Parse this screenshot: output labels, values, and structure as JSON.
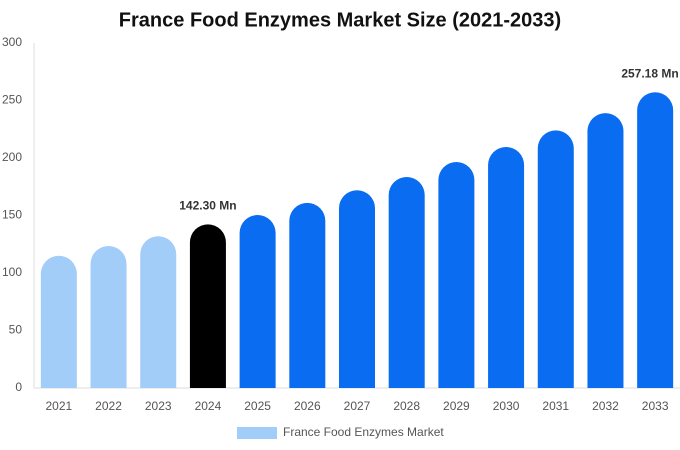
{
  "chart_data": {
    "type": "bar",
    "title": "France Food Enzymes Market Size (2021-2033)",
    "categories": [
      "2021",
      "2022",
      "2023",
      "2024",
      "2025",
      "2026",
      "2027",
      "2028",
      "2029",
      "2030",
      "2031",
      "2032",
      "2033"
    ],
    "series": [
      {
        "name": "France Food Enzymes Market",
        "color": "#a3cdf9",
        "values": [
          115,
          123.5,
          132,
          142.3,
          150.4,
          161,
          172,
          183.5,
          196.5,
          209.6,
          224,
          239,
          257.18
        ],
        "value_labels": [
          null,
          null,
          null,
          "142.30 Mn",
          null,
          null,
          null,
          null,
          null,
          null,
          null,
          null,
          "257.18 Mn"
        ],
        "colors": [
          "#a3cdf9",
          "#a3cdf9",
          "#a3cdf9",
          "#000000",
          "#0a6cf0",
          "#0a6cf0",
          "#0a6cf0",
          "#0a6cf0",
          "#0a6cf0",
          "#0a6cf0",
          "#0a6cf0",
          "#0a6cf0",
          "#0a6cf0"
        ]
      }
    ],
    "ylim": [
      0,
      300
    ],
    "yticks": [
      0,
      50,
      100,
      150,
      200,
      250,
      300
    ],
    "grid": false
  }
}
